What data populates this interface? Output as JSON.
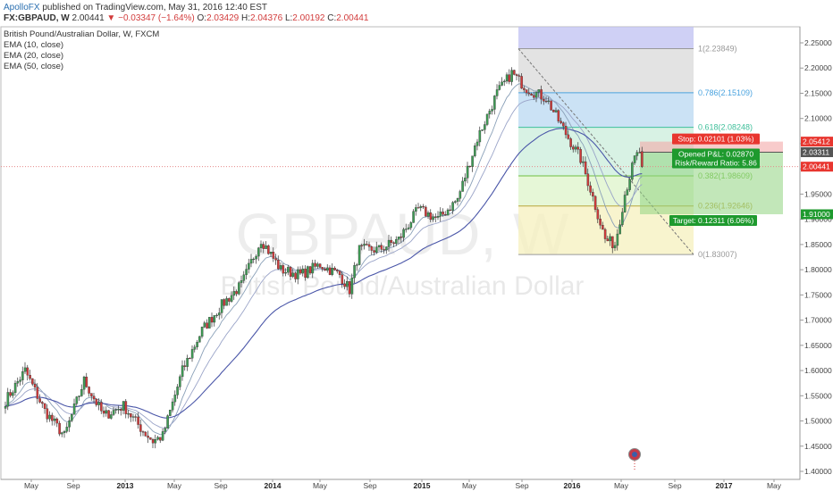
{
  "header": {
    "author": "ApolloFX",
    "published": "published on TradingView.com, May 31, 2016 12:40 EST",
    "symbol": "FX:GBPAUD, W",
    "last": "2.00441",
    "change": "−0.03347 (−1.64%)",
    "open_label": "O:",
    "open": "2.03429",
    "high_label": "H:",
    "high": "2.04376",
    "low_label": "L:",
    "low": "2.00192",
    "close_label": "C:",
    "close": "2.00441"
  },
  "studies": [
    "British Pound/Australian Dollar, W, FXCM",
    "EMA (10, close)",
    "EMA (20, close)",
    "EMA (50, close)"
  ],
  "watermark": {
    "symbol": "GBPAUD, W",
    "name": "British Pound/Australian Dollar"
  },
  "colors": {
    "up": "#3f9c55",
    "down": "#d03a3a",
    "ema10": "#8aa0b8",
    "ema20": "#9aa4c8",
    "ema50": "#4a56a8",
    "stop": "#e8362f",
    "target": "#1e9a2e"
  },
  "chart_data": {
    "type": "candlestick",
    "timeframe": "weekly",
    "x_ticks": [
      "May",
      "Sep",
      "2013",
      "May",
      "Sep",
      "2014",
      "May",
      "Sep",
      "2015",
      "May",
      "Sep",
      "2016",
      "May",
      "Sep",
      "2017",
      "May"
    ],
    "y_ticks": [
      "2.25000",
      "2.20000",
      "2.15000",
      "2.10000",
      "2.05000",
      "2.00000",
      "1.95000",
      "1.90000",
      "1.85000",
      "1.80000",
      "1.75000",
      "1.70000",
      "1.65000",
      "1.60000",
      "1.55000",
      "1.50000",
      "1.45000",
      "1.40000"
    ],
    "ylim": [
      1.4,
      2.27
    ],
    "price_path_keypoints": [
      [
        0,
        1.54
      ],
      [
        8,
        1.6
      ],
      [
        16,
        1.52
      ],
      [
        24,
        1.47
      ],
      [
        32,
        1.58
      ],
      [
        40,
        1.51
      ],
      [
        48,
        1.53
      ],
      [
        56,
        1.48
      ],
      [
        60,
        1.46
      ],
      [
        64,
        1.47
      ],
      [
        72,
        1.6
      ],
      [
        80,
        1.68
      ],
      [
        88,
        1.73
      ],
      [
        96,
        1.77
      ],
      [
        104,
        1.86
      ],
      [
        112,
        1.8
      ],
      [
        120,
        1.79
      ],
      [
        128,
        1.81
      ],
      [
        136,
        1.79
      ],
      [
        140,
        1.76
      ],
      [
        144,
        1.84
      ],
      [
        152,
        1.84
      ],
      [
        160,
        1.86
      ],
      [
        168,
        1.92
      ],
      [
        176,
        1.9
      ],
      [
        184,
        1.94
      ],
      [
        192,
        2.06
      ],
      [
        200,
        2.15
      ],
      [
        206,
        2.19
      ],
      [
        212,
        2.16
      ],
      [
        220,
        2.14
      ],
      [
        228,
        2.07
      ],
      [
        234,
        2.02
      ],
      [
        238,
        1.96
      ],
      [
        244,
        1.86
      ],
      [
        248,
        1.85
      ],
      [
        252,
        1.95
      ],
      [
        256,
        2.02
      ],
      [
        258,
        2.034
      ]
    ],
    "last_candle": {
      "open": 2.03429,
      "high": 2.04376,
      "low": 2.00192,
      "close": 2.00441
    },
    "series": [
      {
        "name": "EMA (10, close)",
        "period": 10
      },
      {
        "name": "EMA (20, close)",
        "period": 20
      },
      {
        "name": "EMA (50, close)",
        "period": 50
      }
    ],
    "fibonacci": [
      {
        "ratio": "1",
        "price": 2.23849,
        "label": "1(2.23849)"
      },
      {
        "ratio": "0.786",
        "price": 2.15109,
        "label": "0.786(2.15109)"
      },
      {
        "ratio": "0.618",
        "price": 2.08248,
        "label": "0.618(2.08248)"
      },
      {
        "ratio": "0.382",
        "price": 1.98609,
        "label": "0.382(1.98609)"
      },
      {
        "ratio": "0.236",
        "price": 1.92646,
        "label": "0.236(1.92646)"
      },
      {
        "ratio": "0",
        "price": 1.83007,
        "label": "0(1.83007)"
      }
    ],
    "position": {
      "entry": 2.03311,
      "stop": 2.05412,
      "target": 1.91,
      "stop_label": "Stop: 0.02101 (1.03%)",
      "pnl_label": "Opened P&L: 0.02870",
      "rr_label": "Risk/Reward Ratio: 5.86",
      "target_label": "Target: 0.12311 (6.06%)"
    },
    "price_labels": {
      "stop": "2.05412",
      "entry": "2.03311",
      "last": "2.00441",
      "target": "1.91000"
    }
  }
}
